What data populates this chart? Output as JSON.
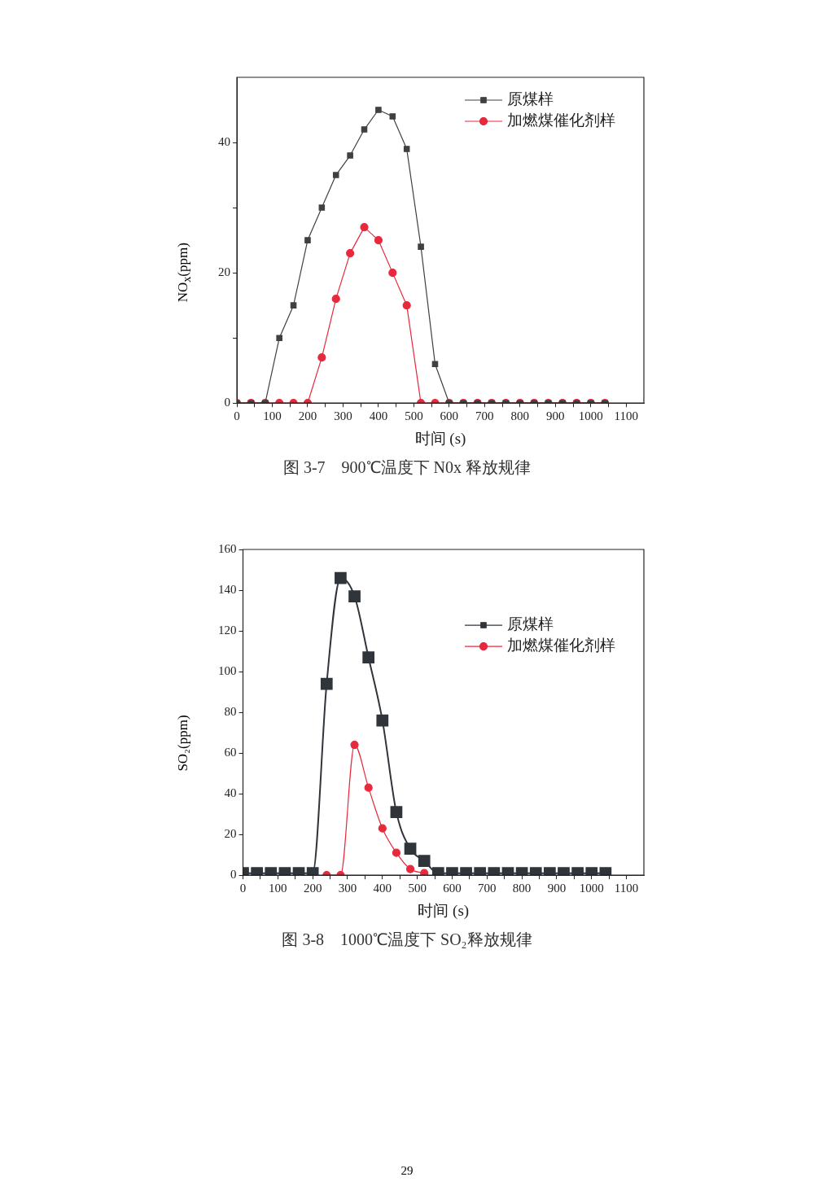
{
  "chart_data": [
    {
      "type": "line",
      "xlabel": "时间 (s)",
      "ylabel": "NO$_{x}$(ppm)",
      "x": [
        0,
        40,
        80,
        120,
        160,
        200,
        240,
        280,
        320,
        360,
        400,
        440,
        480,
        520,
        560,
        600,
        640,
        680,
        720,
        760,
        800,
        840,
        880,
        920,
        960,
        1000,
        1040
      ],
      "series": [
        {
          "name": "原煤样",
          "color": "#404040",
          "marker": "square",
          "values": [
            0,
            0,
            0,
            10,
            15,
            25,
            30,
            35,
            38,
            42,
            45,
            44,
            39,
            24,
            6,
            0,
            0,
            0,
            0,
            0,
            0,
            0,
            0,
            0,
            0,
            0,
            0
          ]
        },
        {
          "name": "加燃煤催化剂样",
          "color": "#e8283c",
          "marker": "circle",
          "values": [
            0,
            0,
            0,
            0,
            0,
            0,
            7,
            16,
            23,
            27,
            25,
            20,
            15,
            0,
            0,
            0,
            0,
            0,
            0,
            0,
            0,
            0,
            0,
            0,
            0,
            0,
            0
          ]
        }
      ],
      "xlim": [
        0,
        1150
      ],
      "xticks": [
        0,
        {
          "value": 50,
          "label": null
        },
        100,
        {
          "value": 150,
          "label": null
        },
        200,
        {
          "value": 250,
          "label": null
        },
        300,
        {
          "value": 350,
          "label": null
        },
        400,
        {
          "value": 450,
          "label": null
        },
        500,
        {
          "value": 550,
          "label": null
        },
        600,
        {
          "value": 650,
          "label": null
        },
        700,
        {
          "value": 750,
          "label": null
        },
        800,
        {
          "value": 850,
          "label": null
        },
        900,
        {
          "value": 950,
          "label": null
        },
        1000,
        {
          "value": 1050,
          "label": null
        },
        1100
      ],
      "ylim": [
        0,
        50
      ],
      "yticks": [
        0,
        {
          "value": 10,
          "label": null
        },
        20,
        {
          "value": 30,
          "label": null
        },
        40
      ],
      "legend": "top right",
      "line_style": "solid",
      "annotations": [
        "图 3-7　900℃温度下 N0x 释放规律"
      ]
    },
    {
      "type": "line",
      "xlabel": "时间 (s)",
      "ylabel": "SO₂(ppm)",
      "x": [
        0,
        40,
        80,
        120,
        160,
        200,
        240,
        280,
        320,
        360,
        400,
        440,
        480,
        520,
        560,
        600,
        640,
        680,
        720,
        760,
        800,
        840,
        880,
        920,
        960,
        1000,
        1040
      ],
      "series": [
        {
          "name": "原煤样",
          "color": "#2f353a",
          "marker": "square",
          "values": [
            1,
            1,
            1,
            1,
            1,
            1,
            94,
            146,
            137,
            107,
            76,
            31,
            13,
            7,
            1,
            1,
            1,
            1,
            1,
            1,
            1,
            1,
            1,
            1,
            1,
            1,
            1
          ]
        },
        {
          "name": "加燃煤催化剂样",
          "color": "#e8283c",
          "marker": "circle",
          "x": [
            240,
            280,
            320,
            360,
            400,
            440,
            480,
            520
          ],
          "values": [
            0,
            0,
            64,
            43,
            23,
            11,
            3,
            1
          ]
        }
      ],
      "xlim": [
        0,
        1150
      ],
      "xticks": [
        0,
        {
          "value": 50,
          "label": null
        },
        100,
        {
          "value": 150,
          "label": null
        },
        200,
        {
          "value": 250,
          "label": null
        },
        300,
        {
          "value": 350,
          "label": null
        },
        400,
        {
          "value": 450,
          "label": null
        },
        500,
        {
          "value": 550,
          "label": null
        },
        600,
        {
          "value": 650,
          "label": null
        },
        700,
        {
          "value": 750,
          "label": null
        },
        800,
        {
          "value": 850,
          "label": null
        },
        900,
        {
          "value": 950,
          "label": null
        },
        1000,
        {
          "value": 1050,
          "label": null
        },
        1100
      ],
      "ylim": [
        0,
        160
      ],
      "yticks": [
        0,
        20,
        40,
        60,
        80,
        100,
        120,
        140,
        160
      ],
      "legend": "right",
      "line_style": "solid",
      "annotations": [
        "图 3-8　1000℃温度下 SO₂释放规律",
        "29"
      ]
    }
  ]
}
